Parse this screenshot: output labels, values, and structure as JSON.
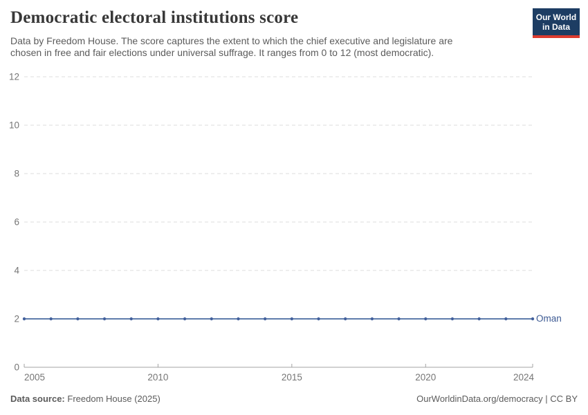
{
  "header": {
    "title": "Democratic electoral institutions score",
    "subtitle": "Data by Freedom House. The score captures the extent to which the chief executive and legislature are chosen in free and fair elections under universal suffrage. It ranges from 0 to 12 (most democratic).",
    "logo": {
      "line1": "Our World",
      "line2": "in Data"
    }
  },
  "footer": {
    "source_label": "Data source:",
    "source_value": "Freedom House (2025)",
    "credit": "OurWorldinData.org/democracy | CC BY"
  },
  "colors": {
    "line": "#5e7cab",
    "marker": "#42609c",
    "entity_label": "#3d5a93",
    "grid": "#dcdcdc",
    "axis": "#a3a3a3",
    "tick_text": "#757575",
    "title_text": "#383838",
    "body_text": "#5b5b5b",
    "logo_bg": "#1d3d63",
    "logo_stripe": "#dc3b2f"
  },
  "chart_data": {
    "type": "line",
    "title": "Democratic electoral institutions score",
    "xlabel": "",
    "ylabel": "",
    "x": [
      2005,
      2006,
      2007,
      2008,
      2009,
      2010,
      2011,
      2012,
      2013,
      2014,
      2015,
      2016,
      2017,
      2018,
      2019,
      2020,
      2021,
      2022,
      2023,
      2024
    ],
    "series": [
      {
        "name": "Oman",
        "values": [
          2,
          2,
          2,
          2,
          2,
          2,
          2,
          2,
          2,
          2,
          2,
          2,
          2,
          2,
          2,
          2,
          2,
          2,
          2,
          2
        ]
      }
    ],
    "xlim": [
      2005,
      2024
    ],
    "ylim": [
      0,
      12
    ],
    "yticks": [
      0,
      2,
      4,
      6,
      8,
      10,
      12
    ],
    "xticks": [
      2005,
      2010,
      2015,
      2020,
      2024
    ],
    "grid": "horizontal-dashed",
    "legend_position": "line-end-label"
  }
}
